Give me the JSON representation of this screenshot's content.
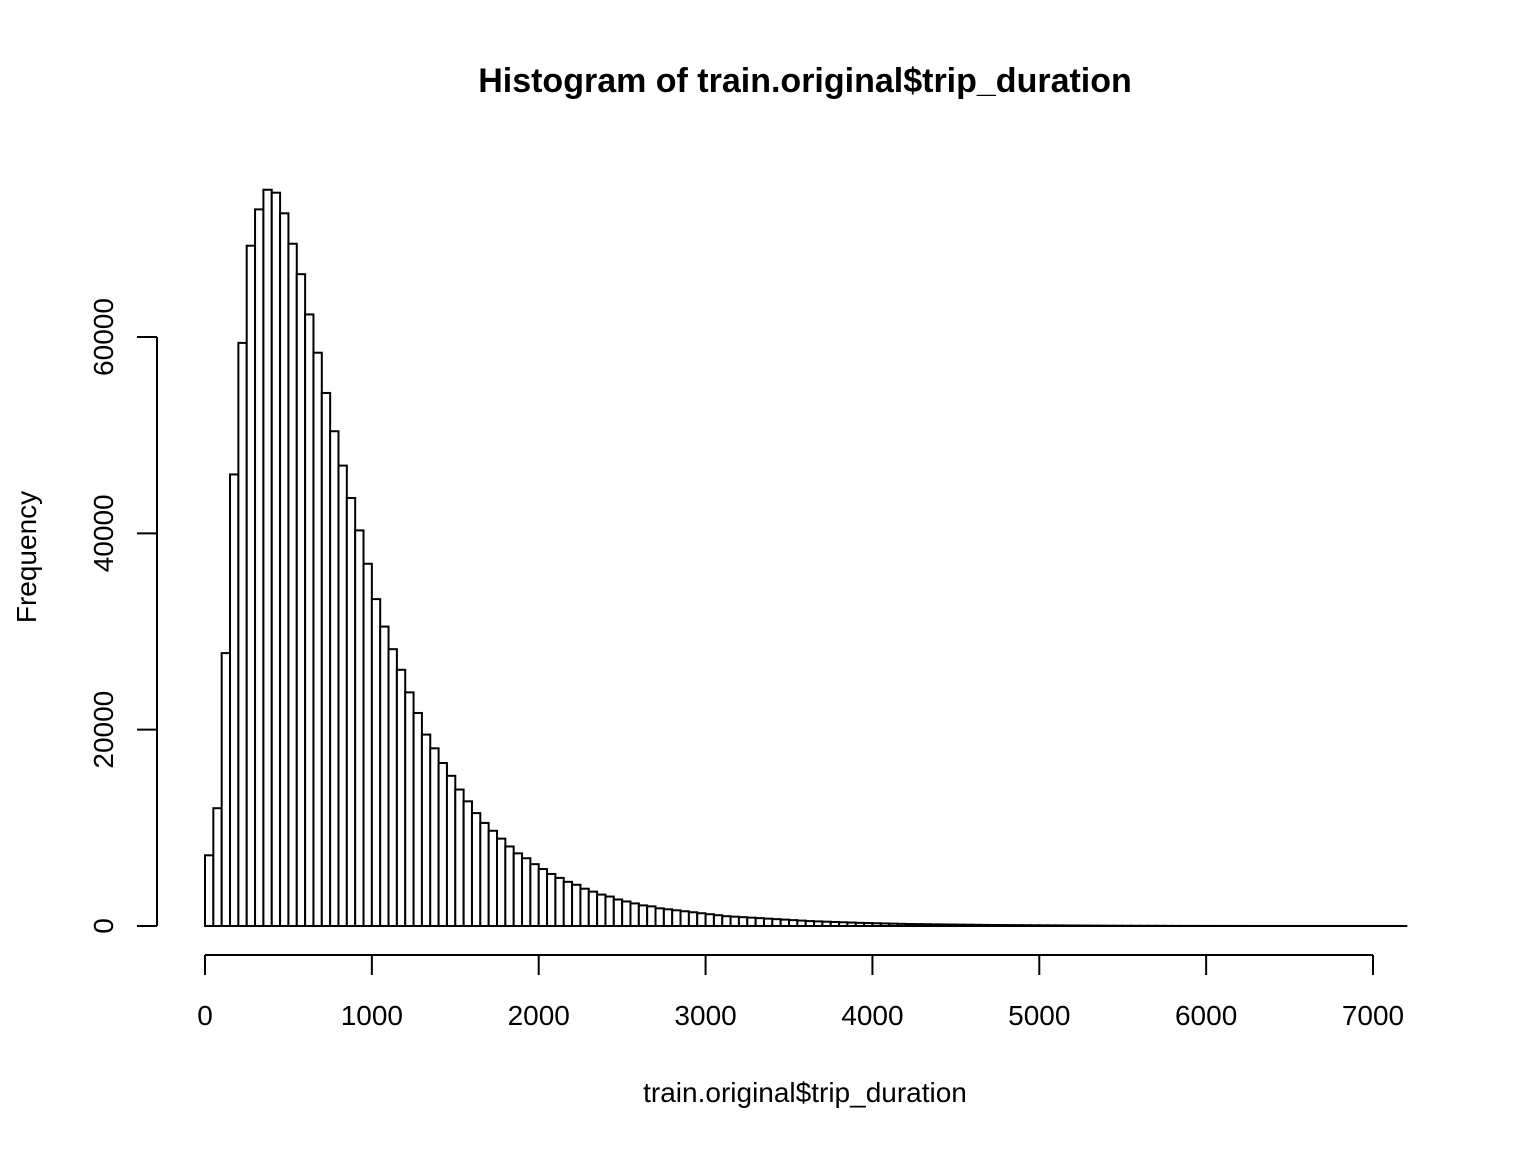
{
  "chart_data": {
    "type": "bar",
    "title": "Histogram of train.original$trip_duration",
    "xlabel": "train.original$trip_duration",
    "ylabel": "Frequency",
    "bin_width": 50,
    "bin_start": 0,
    "xlim": [
      0,
      7200
    ],
    "ylim": [
      0,
      75000
    ],
    "x_ticks": [
      0,
      1000,
      2000,
      3000,
      4000,
      5000,
      6000,
      7000
    ],
    "x_tick_labels": [
      "0",
      "1000",
      "2000",
      "3000",
      "4000",
      "5000",
      "6000",
      "7000"
    ],
    "y_ticks": [
      0,
      20000,
      40000,
      60000
    ],
    "y_tick_labels": [
      "0",
      "20000",
      "40000",
      "60000"
    ],
    "grid": false,
    "values": [
      7200,
      12000,
      27800,
      46000,
      59400,
      69300,
      73000,
      75000,
      74700,
      72600,
      69500,
      66400,
      62300,
      58400,
      54300,
      50400,
      46900,
      43600,
      40300,
      36900,
      33300,
      30500,
      28200,
      26100,
      23800,
      21700,
      19500,
      18100,
      16600,
      15300,
      13900,
      12700,
      11500,
      10500,
      9700,
      8900,
      8100,
      7400,
      6900,
      6300,
      5800,
      5300,
      4900,
      4500,
      4200,
      3800,
      3500,
      3200,
      3000,
      2700,
      2500,
      2300,
      2100,
      2000,
      1800,
      1700,
      1600,
      1500,
      1400,
      1300,
      1200,
      1100,
      1000,
      950,
      900,
      850,
      800,
      750,
      700,
      650,
      600,
      550,
      500,
      470,
      440,
      410,
      380,
      350,
      320,
      300,
      280,
      260,
      240,
      220,
      200,
      190,
      180,
      170,
      160,
      150,
      140,
      130,
      120,
      110,
      100,
      95,
      90,
      85,
      80,
      75,
      70,
      65,
      60,
      55,
      50,
      45,
      40,
      36,
      32,
      28,
      25,
      22,
      20,
      18,
      16,
      14,
      12,
      10,
      9,
      8,
      7,
      6,
      5,
      4,
      3,
      2,
      2,
      2,
      2,
      2,
      2,
      2,
      2,
      2,
      2,
      2,
      2,
      2,
      2,
      2,
      2,
      2,
      2,
      2
    ]
  }
}
